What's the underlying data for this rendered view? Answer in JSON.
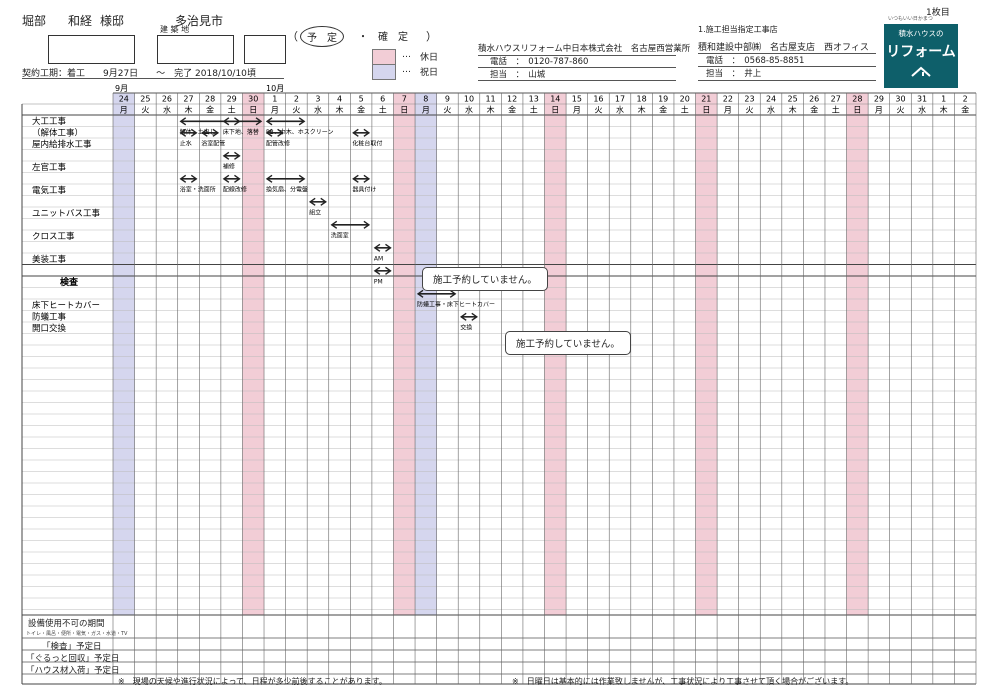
{
  "page_no": "1枚目",
  "logo_top_text": "いつもいい日かまつ",
  "header": {
    "customer_surname": "堀部",
    "customer_name": "和経",
    "honorific": "様邸",
    "location": "多治見市",
    "building_label": "建 築 地",
    "contract_period": "契約工期：着工　　9月27日　　〜　完了 2018/10/10頃",
    "status_planned": "予　定",
    "status_dot": "・",
    "status_confirmed": "確　定",
    "bracket_open": "（",
    "bracket_close": "）",
    "holiday_legend": "休日",
    "public_holiday_legend": "祝日",
    "legend_dots": "…",
    "holiday_color": "#f2cdd6",
    "public_holiday_color": "#d5d6ee"
  },
  "company": {
    "name": "積水ハウスリフォーム中日本株式会社　名古屋西営業所",
    "phone": "電話　：　0120-787-860",
    "manager": "担当　：　山城"
  },
  "contractor": {
    "label": "1.施工担当指定工事店",
    "name": "積和建設中部㈱　名古屋支店　西オフィス",
    "phone": "電話　：　0568-85-8851",
    "manager": "担当　：　井上"
  },
  "logo": {
    "line1": "積水ハウスの",
    "line2": "リフォーム"
  },
  "months": {
    "sep": "9月",
    "oct": "10月"
  },
  "days": [
    {
      "d": "24",
      "w": "月",
      "t": "p"
    },
    {
      "d": "25",
      "w": "火",
      "t": ""
    },
    {
      "d": "26",
      "w": "水",
      "t": ""
    },
    {
      "d": "27",
      "w": "木",
      "t": ""
    },
    {
      "d": "28",
      "w": "金",
      "t": ""
    },
    {
      "d": "29",
      "w": "土",
      "t": ""
    },
    {
      "d": "30",
      "w": "日",
      "t": "h"
    },
    {
      "d": "1",
      "w": "月",
      "t": ""
    },
    {
      "d": "2",
      "w": "火",
      "t": ""
    },
    {
      "d": "3",
      "w": "水",
      "t": ""
    },
    {
      "d": "4",
      "w": "木",
      "t": ""
    },
    {
      "d": "5",
      "w": "金",
      "t": ""
    },
    {
      "d": "6",
      "w": "土",
      "t": ""
    },
    {
      "d": "7",
      "w": "日",
      "t": "h"
    },
    {
      "d": "8",
      "w": "月",
      "t": "p"
    },
    {
      "d": "9",
      "w": "火",
      "t": ""
    },
    {
      "d": "10",
      "w": "水",
      "t": ""
    },
    {
      "d": "11",
      "w": "木",
      "t": ""
    },
    {
      "d": "12",
      "w": "金",
      "t": ""
    },
    {
      "d": "13",
      "w": "土",
      "t": ""
    },
    {
      "d": "14",
      "w": "日",
      "t": "h"
    },
    {
      "d": "15",
      "w": "月",
      "t": ""
    },
    {
      "d": "16",
      "w": "火",
      "t": ""
    },
    {
      "d": "17",
      "w": "水",
      "t": ""
    },
    {
      "d": "18",
      "w": "木",
      "t": ""
    },
    {
      "d": "19",
      "w": "金",
      "t": ""
    },
    {
      "d": "20",
      "w": "土",
      "t": ""
    },
    {
      "d": "21",
      "w": "日",
      "t": "h"
    },
    {
      "d": "22",
      "w": "月",
      "t": ""
    },
    {
      "d": "23",
      "w": "火",
      "t": ""
    },
    {
      "d": "24",
      "w": "水",
      "t": ""
    },
    {
      "d": "25",
      "w": "木",
      "t": ""
    },
    {
      "d": "26",
      "w": "金",
      "t": ""
    },
    {
      "d": "27",
      "w": "土",
      "t": ""
    },
    {
      "d": "28",
      "w": "日",
      "t": "h"
    },
    {
      "d": "29",
      "w": "月",
      "t": ""
    },
    {
      "d": "30",
      "w": "火",
      "t": ""
    },
    {
      "d": "31",
      "w": "水",
      "t": ""
    },
    {
      "d": "1",
      "w": "木",
      "t": ""
    },
    {
      "d": "2",
      "w": "金",
      "t": ""
    }
  ],
  "tasks": [
    {
      "label": "大工工事",
      "label2": "（解体工事）",
      "rows": 2
    },
    {
      "label": "屋内給排水工事",
      "rows": 1
    },
    {
      "label": "",
      "rows": 1
    },
    {
      "label": "左官工事",
      "rows": 1
    },
    {
      "label": "",
      "rows": 1
    },
    {
      "label": "電気工事",
      "rows": 1
    },
    {
      "label": "",
      "rows": 1
    },
    {
      "label": "ユニットバス工事",
      "rows": 1
    },
    {
      "label": "",
      "rows": 1
    },
    {
      "label": "クロス工事",
      "rows": 1
    },
    {
      "label": "",
      "rows": 1
    },
    {
      "label": "美装工事",
      "rows": 1
    },
    {
      "label": "",
      "rows": 1
    },
    {
      "label": "検査",
      "rows": 1
    },
    {
      "label": "",
      "rows": 1
    },
    {
      "label": "床下ヒートカバー",
      "label2": "防蟻工事",
      "rows": 2
    },
    {
      "label": "開口交換",
      "rows": 1
    }
  ],
  "bars": [
    {
      "from": 3,
      "to": 5,
      "row": 0,
      "note": "解体、土出し"
    },
    {
      "from": 5,
      "to": 6,
      "row": 0,
      "note": "床下地、落替"
    },
    {
      "from": 7,
      "to": 8,
      "row": 0,
      "note": "PB、巾木、ホスクリーン"
    },
    {
      "from": 3,
      "to": 3,
      "row": 1,
      "note": "止水"
    },
    {
      "from": 4,
      "to": 4,
      "row": 1,
      "note": "浴室配管"
    },
    {
      "from": 7,
      "to": 7,
      "row": 1,
      "note": "配管改修"
    },
    {
      "from": 11,
      "to": 11,
      "row": 1,
      "note": "化粧台取付"
    },
    {
      "from": 5,
      "to": 5,
      "row": 3,
      "note": "補修"
    },
    {
      "from": 3,
      "to": 3,
      "row": 5,
      "note": "浴室・洗面所"
    },
    {
      "from": 5,
      "to": 5,
      "row": 5,
      "note": "配線改修"
    },
    {
      "from": 7,
      "to": 8,
      "row": 5,
      "note": "換気扇、分電盤"
    },
    {
      "from": 11,
      "to": 11,
      "row": 5,
      "note": "器具付け"
    },
    {
      "from": 9,
      "to": 9,
      "row": 7,
      "note": "組立"
    },
    {
      "from": 10,
      "to": 11,
      "row": 9,
      "note": "洗面室"
    },
    {
      "from": 12,
      "to": 12,
      "row": 11,
      "note": "AM"
    },
    {
      "from": 12,
      "to": 12,
      "row": 13,
      "note": "PM"
    },
    {
      "from": 14,
      "to": 15,
      "row": 15,
      "note": "防蟻工事・床下ヒートカバー"
    },
    {
      "from": 16,
      "to": 16,
      "row": 17,
      "note": "交換"
    }
  ],
  "callouts": [
    "施工予約していません。",
    "施工予約していません。"
  ],
  "footer": {
    "unusable_label": "設備使用不可の期間",
    "unusable_sub": "トイレ・風呂・便所・電気・ガス・水道・TV",
    "inspection": "「検査」予定日",
    "collection": "「ぐるっと回収」予定日",
    "delivery": "「ハウス材入荷」予定日",
    "note_left": "※　現場の天候や進行状況によって、日程が多少前後することがあります。",
    "note_right": "※　日曜日は基本的には作業致しませんが、工事状況により工事させて頂く場合がございます。"
  }
}
